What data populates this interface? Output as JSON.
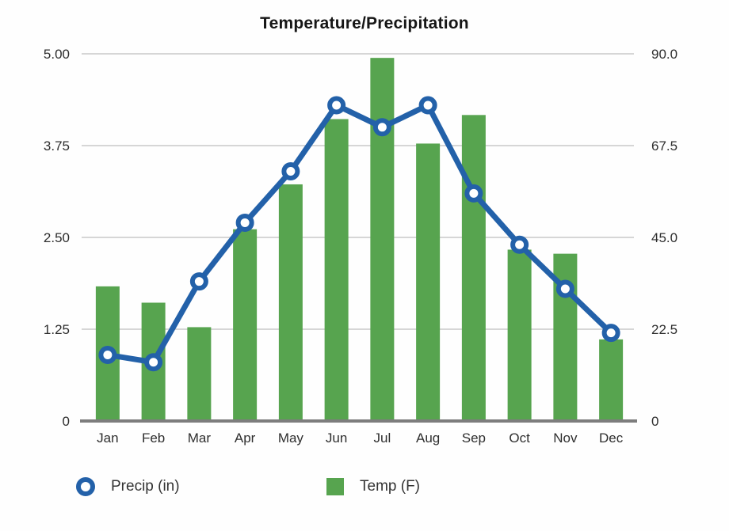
{
  "chart_data": {
    "type": "bar",
    "subtype": "combo bar+line, dual y-axis",
    "title": "Temperature/Precipitation",
    "categories": [
      "Jan",
      "Feb",
      "Mar",
      "Apr",
      "May",
      "Jun",
      "Jul",
      "Aug",
      "Sep",
      "Oct",
      "Nov",
      "Dec"
    ],
    "series": [
      {
        "name": "Precip (in)",
        "type": "line",
        "axis": "left",
        "color": "#2361a9",
        "marker": "open-circle",
        "values": [
          0.9,
          0.8,
          1.9,
          2.7,
          3.4,
          4.3,
          4.0,
          4.3,
          3.1,
          2.4,
          1.8,
          1.2
        ]
      },
      {
        "name": "Temp (F)",
        "type": "bar",
        "axis": "right",
        "color": "#57a44f",
        "values": [
          33,
          29,
          23,
          47,
          58,
          74,
          89,
          68,
          75,
          42,
          41,
          20
        ]
      }
    ],
    "axes": {
      "left": {
        "min": 0,
        "max": 5,
        "ticks": [
          "5.00",
          "3.75",
          "2.50",
          "1.25",
          "0"
        ]
      },
      "right": {
        "min": 0,
        "max": 90,
        "ticks": [
          "90.0",
          "67.5",
          "45.0",
          "22.5",
          "0"
        ]
      }
    },
    "grid": true,
    "legend_position": "bottom",
    "colors": {
      "grid": "#d6d6d6",
      "baseline": "#7d7d7d",
      "text": "#2e2e2e",
      "background": "#fefefe"
    }
  }
}
